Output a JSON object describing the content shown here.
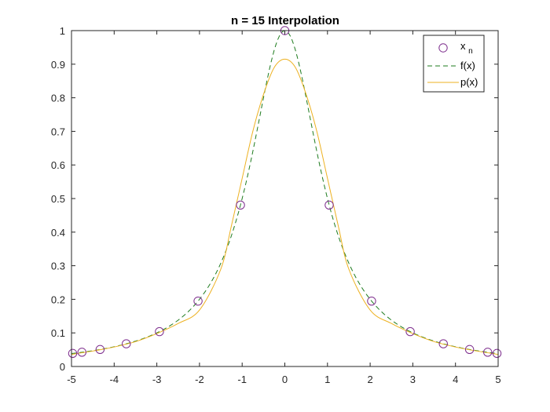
{
  "chart_data": {
    "type": "line",
    "title": "n = 15 Interpolation",
    "xlabel": "",
    "ylabel": "",
    "xlim": [
      -5,
      5
    ],
    "ylim": [
      0,
      1
    ],
    "x_ticks": [
      -5,
      -4,
      -3,
      -2,
      -1,
      0,
      1,
      2,
      3,
      4,
      5
    ],
    "y_ticks": [
      0,
      0.1,
      0.2,
      0.3,
      0.4,
      0.5,
      0.6,
      0.7,
      0.8,
      0.9,
      1
    ],
    "x_tick_labels": [
      "-5",
      "-4",
      "-3",
      "-2",
      "-1",
      "0",
      "1",
      "2",
      "3",
      "4",
      "5"
    ],
    "y_tick_labels": [
      "0",
      "0.1",
      "0.2",
      "0.3",
      "0.4",
      "0.5",
      "0.6",
      "0.7",
      "0.8",
      "0.9",
      "1"
    ],
    "grid": false,
    "legend_position": "top-right",
    "series": [
      {
        "name": "x",
        "name_subscript": "n",
        "kind": "markers",
        "marker": "circle",
        "color": "#7E2F8E",
        "x": [
          -4.9726,
          -4.7553,
          -4.3301,
          -3.7157,
          -2.9389,
          -2.0337,
          -1.0396,
          0.0,
          1.0396,
          2.0337,
          2.9389,
          3.7157,
          4.3301,
          4.7553,
          4.9726
        ],
        "y": [
          0.0389,
          0.0424,
          0.0506,
          0.0676,
          0.1038,
          0.1947,
          0.4806,
          1.0,
          0.4806,
          0.1947,
          0.1038,
          0.0676,
          0.0506,
          0.0424,
          0.0389
        ]
      },
      {
        "name": "f(x)",
        "kind": "line",
        "line_style": "dashed",
        "color": "#1E7B1E",
        "function": "1/(1+x^2)",
        "x_range": [
          -5,
          5
        ]
      },
      {
        "name": "p(x)",
        "kind": "line",
        "line_style": "solid",
        "color": "#EDB120",
        "x": [
          -5,
          -4.5,
          -4,
          -3.5,
          -3,
          -2.5,
          -2,
          -1.5,
          -1.25,
          -1,
          -0.75,
          -0.5,
          -0.25,
          0,
          0.25,
          0.5,
          0.75,
          1,
          1.25,
          1.5,
          2,
          2.5,
          3,
          3.5,
          4,
          4.5,
          5
        ],
        "y": [
          0.036,
          0.046,
          0.058,
          0.074,
          0.098,
          0.128,
          0.168,
          0.29,
          0.42,
          0.56,
          0.7,
          0.81,
          0.89,
          0.915,
          0.89,
          0.81,
          0.7,
          0.56,
          0.42,
          0.29,
          0.168,
          0.128,
          0.098,
          0.074,
          0.058,
          0.046,
          0.036
        ]
      }
    ]
  }
}
